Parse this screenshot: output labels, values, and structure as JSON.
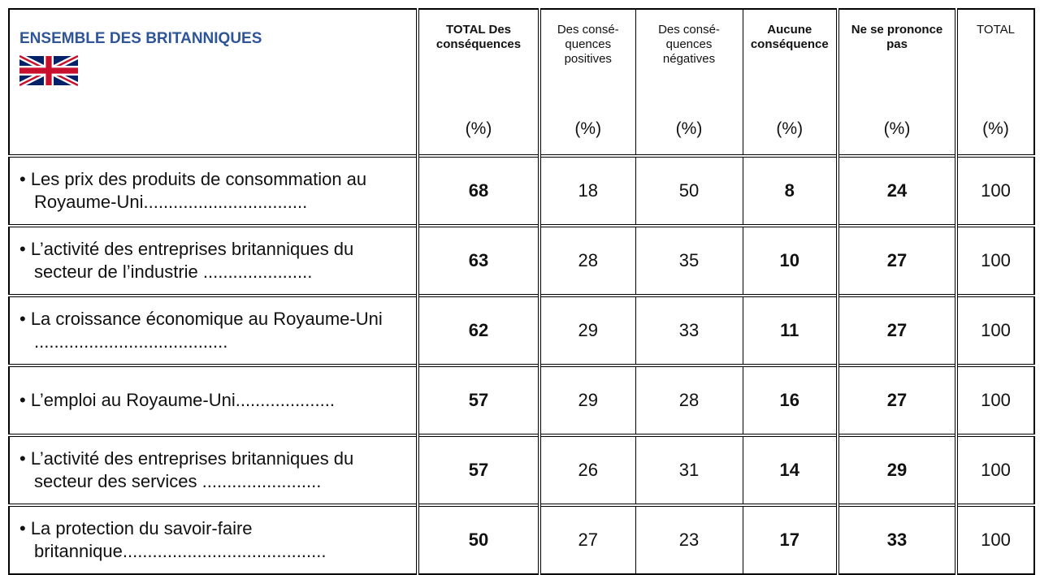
{
  "header": {
    "title": "ENSEMBLE DES BRITANNIQUES"
  },
  "columns": [
    {
      "label": "TOTAL Des conséquences",
      "unit": "(%)",
      "bold": true
    },
    {
      "label": "Des consé-quences positives",
      "unit": "(%)",
      "bold": false
    },
    {
      "label": "Des consé-quences négatives",
      "unit": "(%)",
      "bold": false
    },
    {
      "label": "Aucune conséquence",
      "unit": "(%)",
      "bold": true
    },
    {
      "label": "Ne se prononce pas",
      "unit": "(%)",
      "bold": true
    },
    {
      "label": "TOTAL",
      "unit": "(%)",
      "bold": false
    }
  ],
  "rows": [
    {
      "label": "• Les prix des produits de consommation au Royaume-Uni.................................",
      "values": [
        68,
        18,
        50,
        8,
        24,
        100
      ]
    },
    {
      "label": "• L’activité des entreprises britanniques du secteur de l’industrie  ......................",
      "values": [
        63,
        28,
        35,
        10,
        27,
        100
      ]
    },
    {
      "label": "• La croissance économique au Royaume-Uni .......................................",
      "values": [
        62,
        29,
        33,
        11,
        27,
        100
      ]
    },
    {
      "label": "• L’emploi au Royaume-Uni....................",
      "values": [
        57,
        29,
        28,
        16,
        27,
        100
      ]
    },
    {
      "label": "• L’activité des entreprises britanniques du secteur des services  ........................",
      "values": [
        57,
        26,
        31,
        14,
        29,
        100
      ]
    },
    {
      "label": "• La protection du savoir-faire britannique.........................................",
      "values": [
        50,
        27,
        23,
        17,
        33,
        100
      ]
    }
  ]
}
